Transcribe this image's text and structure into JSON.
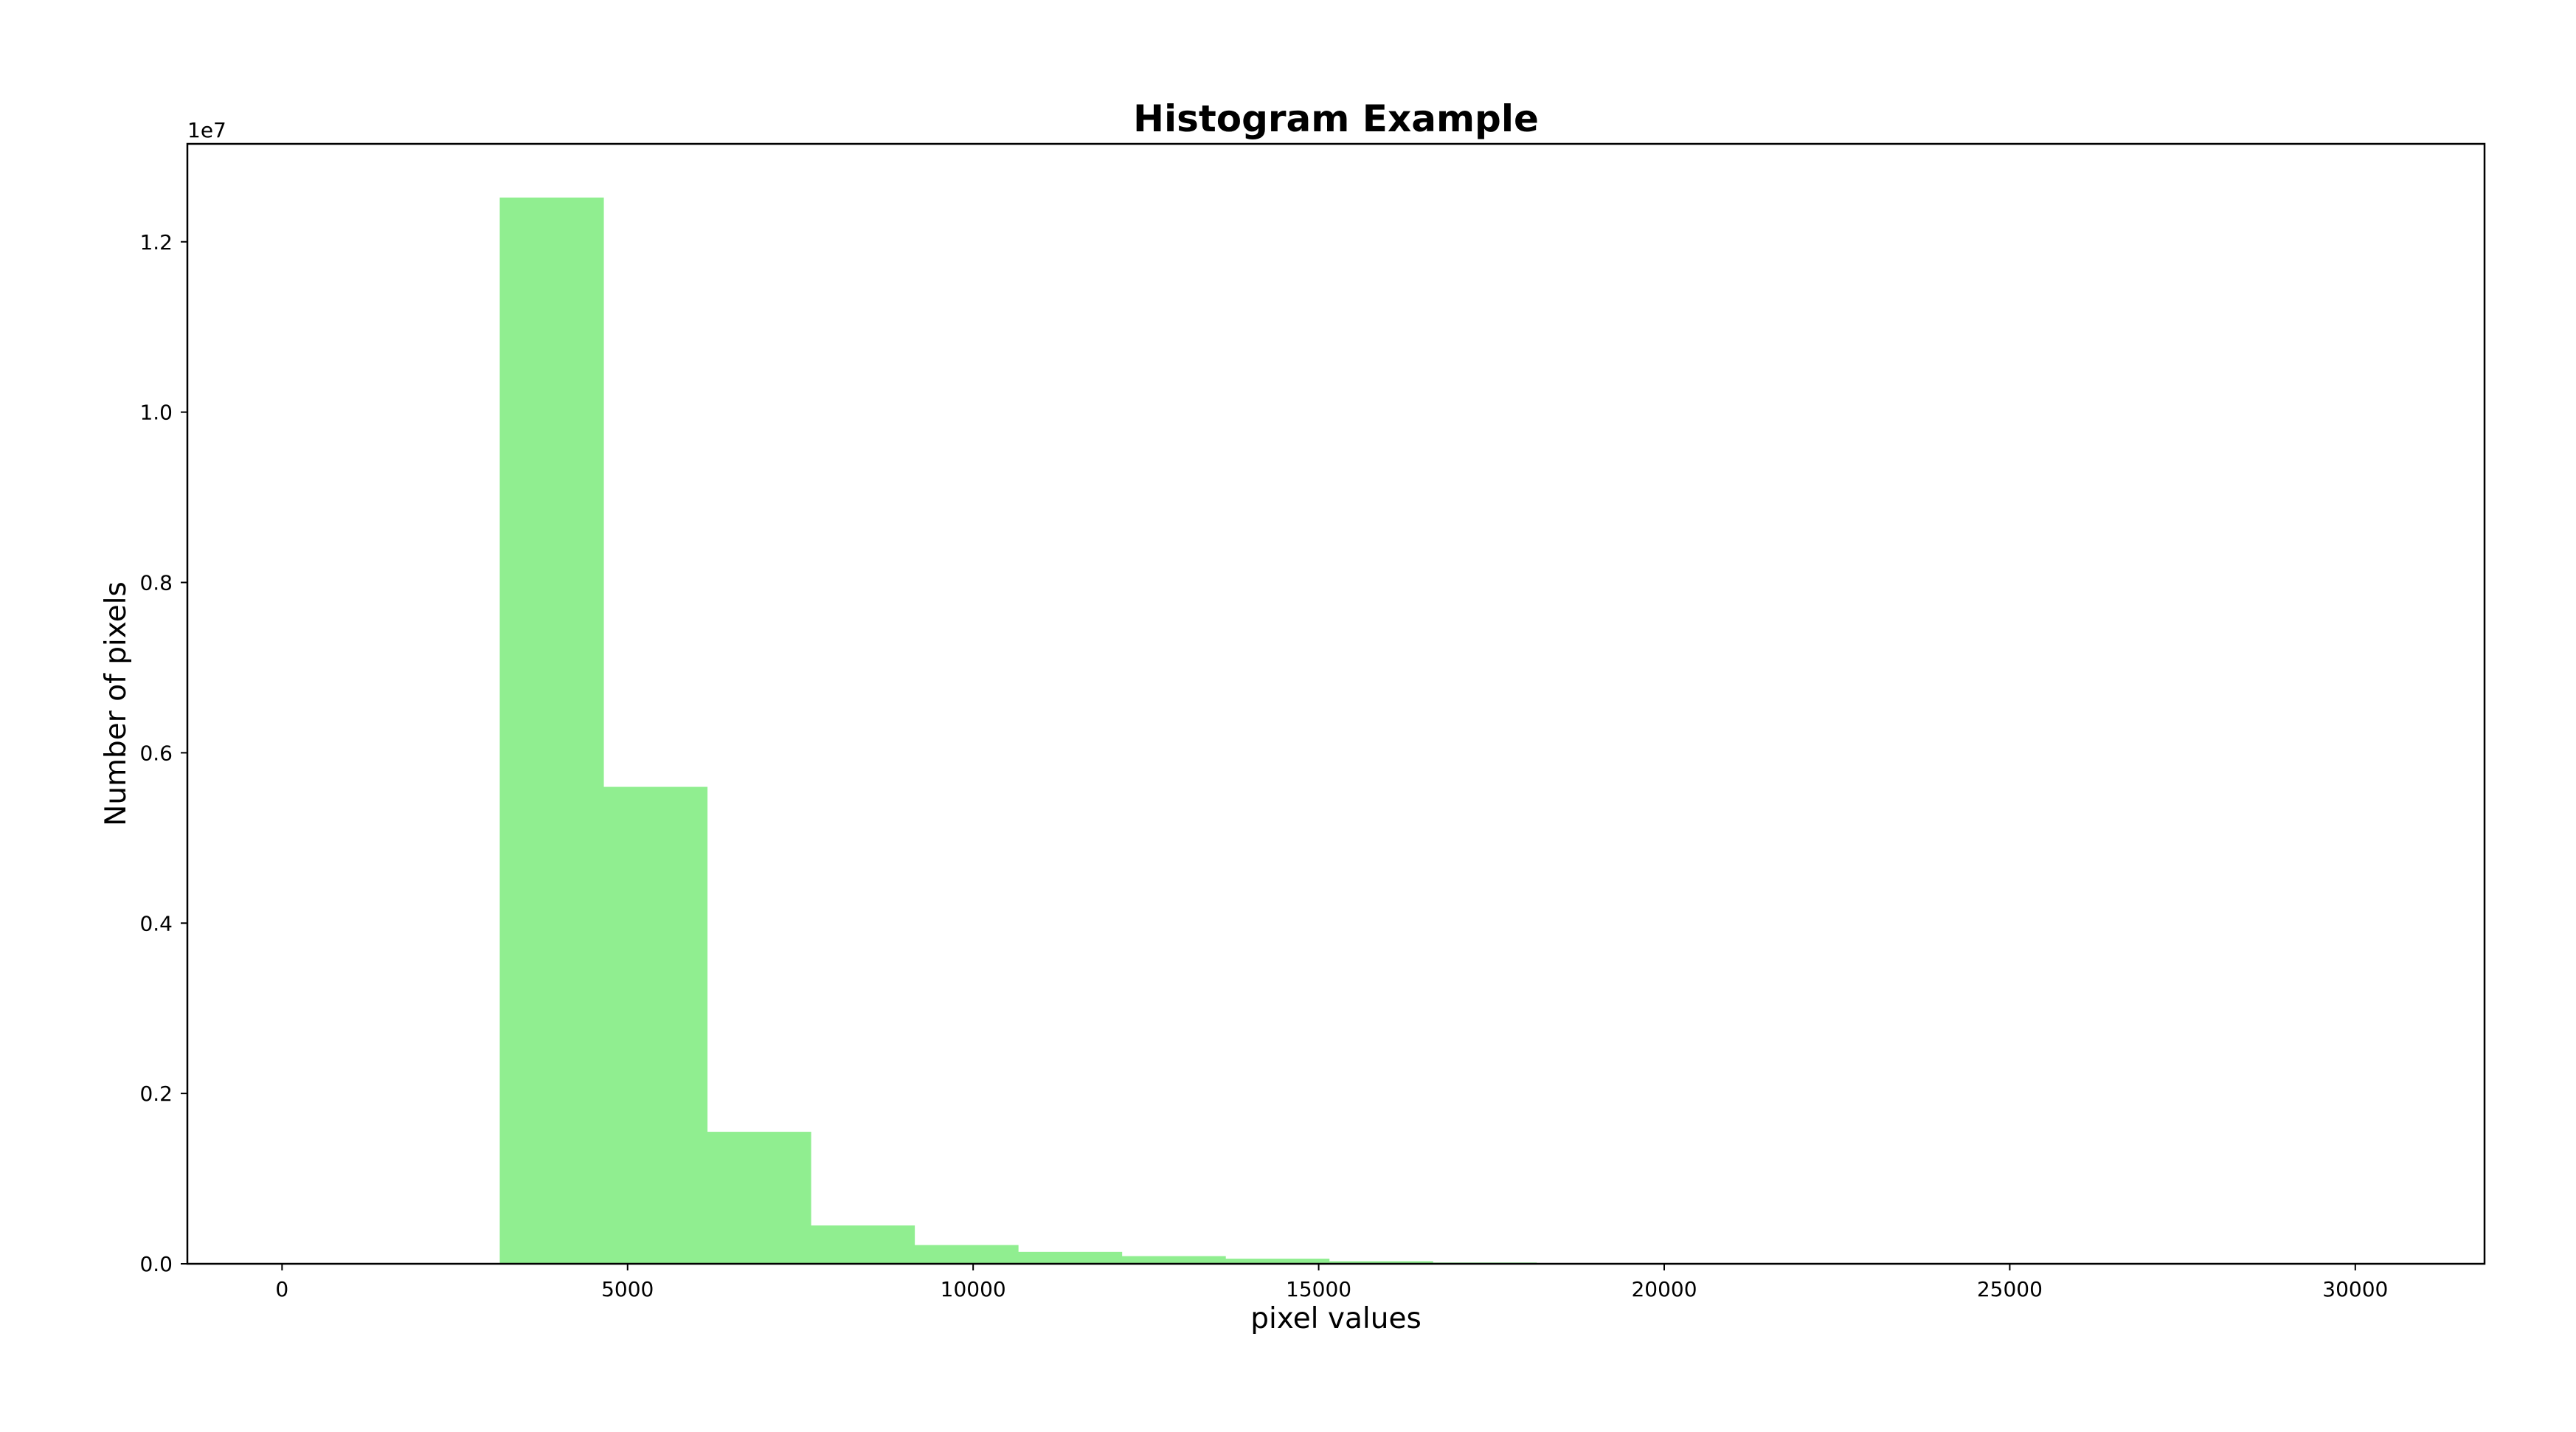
{
  "chart_data": {
    "type": "bar",
    "title": "Histogram Example",
    "xlabel": "pixel values",
    "ylabel": "Number of pixels",
    "y_offset_text": "1e7",
    "bar_color": "#90ee90",
    "grid": false,
    "xlim": [
      -1370,
      31870
    ],
    "ylim": [
      0,
      13150000
    ],
    "x_ticks": [
      {
        "value": 0,
        "label": "0"
      },
      {
        "value": 5000,
        "label": "5000"
      },
      {
        "value": 10000,
        "label": "10000"
      },
      {
        "value": 15000,
        "label": "15000"
      },
      {
        "value": 20000,
        "label": "20000"
      },
      {
        "value": 25000,
        "label": "25000"
      },
      {
        "value": 30000,
        "label": "30000"
      }
    ],
    "y_ticks": [
      {
        "value": 0,
        "label": "0.0"
      },
      {
        "value": 2000000,
        "label": "0.2"
      },
      {
        "value": 4000000,
        "label": "0.4"
      },
      {
        "value": 6000000,
        "label": "0.6"
      },
      {
        "value": 8000000,
        "label": "0.8"
      },
      {
        "value": 10000000,
        "label": "1.0"
      },
      {
        "value": 12000000,
        "label": "1.2"
      }
    ],
    "bins": [
      {
        "x0": 3150,
        "x1": 4650,
        "count": 12520000
      },
      {
        "x0": 4650,
        "x1": 6150,
        "count": 5600000
      },
      {
        "x0": 6150,
        "x1": 7650,
        "count": 1550000
      },
      {
        "x0": 7650,
        "x1": 9150,
        "count": 450000
      },
      {
        "x0": 9150,
        "x1": 10650,
        "count": 220000
      },
      {
        "x0": 10650,
        "x1": 12150,
        "count": 140000
      },
      {
        "x0": 12150,
        "x1": 13650,
        "count": 90000
      },
      {
        "x0": 13650,
        "x1": 15150,
        "count": 60000
      },
      {
        "x0": 15150,
        "x1": 16650,
        "count": 30000
      },
      {
        "x0": 16650,
        "x1": 18150,
        "count": 15000
      },
      {
        "x0": 18150,
        "x1": 19650,
        "count": 5000
      }
    ]
  }
}
